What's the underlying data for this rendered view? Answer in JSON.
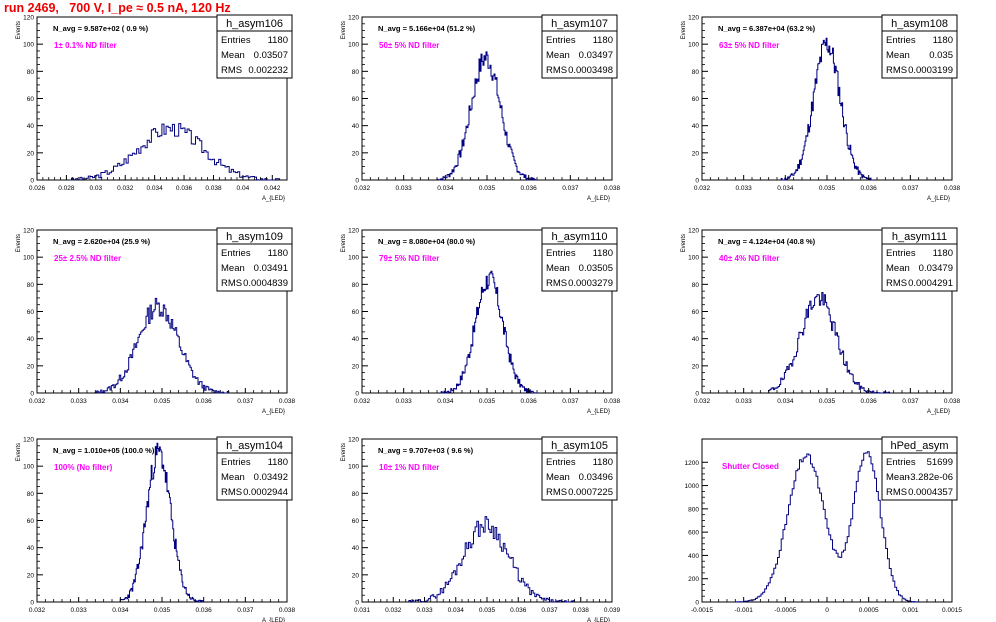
{
  "page": {
    "title": "run 2469,   700 V, I_pe ≈ 0.5 nA, 120 Hz",
    "colors": {
      "title": "#ee0000",
      "histogram": "#000080",
      "annotation": "#ff00ff",
      "axis": "#000000",
      "stats_box_bg": "#ffffff"
    }
  },
  "chart_data": [
    {
      "type": "histogram",
      "name": "h_asym106",
      "stats": {
        "entries": "1180",
        "mean": "0.03507",
        "rms": "0.002232"
      },
      "n_avg": "N_avg = 9.587e+02 ( 0.9 %)",
      "note": "1± 0.1% ND filter",
      "xlim": [
        0.026,
        0.043
      ],
      "xticks": [
        "0.026",
        "0.028",
        "0.03",
        "0.032",
        "0.034",
        "0.036",
        "0.038",
        "0.04",
        "0.042"
      ],
      "xtick_values": [
        0.026,
        0.028,
        0.03,
        0.032,
        0.034,
        0.036,
        0.038,
        0.04,
        0.042
      ],
      "ylim": [
        0,
        120
      ],
      "yticks": [
        "0",
        "20",
        "40",
        "60",
        "80",
        "100",
        "120"
      ],
      "ytick_values": [
        0,
        20,
        40,
        60,
        80,
        100,
        120
      ],
      "xlabel": "A_{LED}",
      "ylabel": "Events",
      "shape": {
        "kind": "gauss",
        "peak": 38,
        "mu": 0.0351,
        "sigma": 0.0022,
        "lo": 0.0282,
        "hi": 0.0425,
        "nbins": 100,
        "seed": 3
      }
    },
    {
      "type": "histogram",
      "name": "h_asym107",
      "stats": {
        "entries": "1180",
        "mean": "0.03497",
        "rms": "0.0003498"
      },
      "n_avg": "N_avg = 5.166e+04 (51.2 %)",
      "note": "50± 5% ND filter",
      "xlim": [
        0.032,
        0.038
      ],
      "xticks": [
        "0.032",
        "0.033",
        "0.034",
        "0.035",
        "0.036",
        "0.037",
        "0.038"
      ],
      "xtick_values": [
        0.032,
        0.033,
        0.034,
        0.035,
        0.036,
        0.037,
        0.038
      ],
      "ylim": [
        0,
        120
      ],
      "yticks": [
        "0",
        "20",
        "40",
        "60",
        "80",
        "100",
        "120"
      ],
      "ytick_values": [
        0,
        20,
        40,
        60,
        80,
        100,
        120
      ],
      "xlabel": "A_{LED}",
      "ylabel": "Events",
      "shape": {
        "kind": "gauss",
        "peak": 90,
        "mu": 0.03497,
        "sigma": 0.00035,
        "lo": 0.0338,
        "hi": 0.0362,
        "nbins": 100,
        "seed": 7
      }
    },
    {
      "type": "histogram",
      "name": "h_asym108",
      "stats": {
        "entries": "1180",
        "mean": "0.035",
        "rms": "0.0003199"
      },
      "n_avg": "N_avg = 6.387e+04 (63.2 %)",
      "note": "63± 5% ND filter",
      "xlim": [
        0.032,
        0.038
      ],
      "xticks": [
        "0.032",
        "0.033",
        "0.034",
        "0.035",
        "0.036",
        "0.037",
        "0.038"
      ],
      "xtick_values": [
        0.032,
        0.033,
        0.034,
        0.035,
        0.036,
        0.037,
        0.038
      ],
      "ylim": [
        0,
        120
      ],
      "yticks": [
        "0",
        "20",
        "40",
        "60",
        "80",
        "100",
        "120"
      ],
      "ytick_values": [
        0,
        20,
        40,
        60,
        80,
        100,
        120
      ],
      "xlabel": "A_{LED}",
      "ylabel": "Events",
      "shape": {
        "kind": "gauss",
        "peak": 100,
        "mu": 0.035,
        "sigma": 0.00032,
        "lo": 0.0339,
        "hi": 0.0361,
        "nbins": 100,
        "seed": 11
      }
    },
    {
      "type": "histogram",
      "name": "h_asym109",
      "stats": {
        "entries": "1180",
        "mean": "0.03491",
        "rms": "0.0004839"
      },
      "n_avg": "N_avg = 2.620e+04 (25.9 %)",
      "note": "25± 2.5% ND filter",
      "xlim": [
        0.032,
        0.038
      ],
      "xticks": [
        "0.032",
        "0.033",
        "0.034",
        "0.035",
        "0.036",
        "0.037",
        "0.038"
      ],
      "xtick_values": [
        0.032,
        0.033,
        0.034,
        0.035,
        0.036,
        0.037,
        0.038
      ],
      "ylim": [
        0,
        120
      ],
      "yticks": [
        "0",
        "20",
        "40",
        "60",
        "80",
        "100",
        "120"
      ],
      "ytick_values": [
        0,
        20,
        40,
        60,
        80,
        100,
        120
      ],
      "xlabel": "A_{LED}",
      "ylabel": "Events",
      "shape": {
        "kind": "gauss",
        "peak": 64,
        "mu": 0.03491,
        "sigma": 0.00048,
        "lo": 0.0334,
        "hi": 0.0366,
        "nbins": 100,
        "seed": 13
      }
    },
    {
      "type": "histogram",
      "name": "h_asym110",
      "stats": {
        "entries": "1180",
        "mean": "0.03505",
        "rms": "0.0003279"
      },
      "n_avg": "N_avg = 8.080e+04 (80.0 %)",
      "note": "79± 5% ND filter",
      "xlim": [
        0.032,
        0.038
      ],
      "xticks": [
        "0.032",
        "0.033",
        "0.034",
        "0.035",
        "0.036",
        "0.037",
        "0.038"
      ],
      "xtick_values": [
        0.032,
        0.033,
        0.034,
        0.035,
        0.036,
        0.037,
        0.038
      ],
      "ylim": [
        0,
        120
      ],
      "yticks": [
        "0",
        "20",
        "40",
        "60",
        "80",
        "100",
        "120"
      ],
      "ytick_values": [
        0,
        20,
        40,
        60,
        80,
        100,
        120
      ],
      "xlabel": "A_{LED}",
      "ylabel": "Events",
      "shape": {
        "kind": "gauss",
        "peak": 84,
        "mu": 0.03505,
        "sigma": 0.00033,
        "lo": 0.0339,
        "hi": 0.0362,
        "nbins": 100,
        "seed": 17
      }
    },
    {
      "type": "histogram",
      "name": "h_asym111",
      "stats": {
        "entries": "1180",
        "mean": "0.03479",
        "rms": "0.0004291"
      },
      "n_avg": "N_avg = 4.124e+04 (40.8 %)",
      "note": "40± 4% ND filter",
      "xlim": [
        0.032,
        0.038
      ],
      "xticks": [
        "0.032",
        "0.033",
        "0.034",
        "0.035",
        "0.036",
        "0.037",
        "0.038"
      ],
      "xtick_values": [
        0.032,
        0.033,
        0.034,
        0.035,
        0.036,
        0.037,
        0.038
      ],
      "ylim": [
        0,
        120
      ],
      "yticks": [
        "0",
        "20",
        "40",
        "60",
        "80",
        "100",
        "120"
      ],
      "ytick_values": [
        0,
        20,
        40,
        60,
        80,
        100,
        120
      ],
      "xlabel": "A_{LED}",
      "ylabel": "Events",
      "shape": {
        "kind": "gauss",
        "peak": 70,
        "mu": 0.03479,
        "sigma": 0.00043,
        "lo": 0.0336,
        "hi": 0.0365,
        "nbins": 100,
        "seed": 19
      }
    },
    {
      "type": "histogram",
      "name": "h_asym104",
      "stats": {
        "entries": "1180",
        "mean": "0.03492",
        "rms": "0.0002944"
      },
      "n_avg": "N_avg = 1.010e+05 (100.0 %)",
      "note": "100% (No filter)",
      "xlim": [
        0.032,
        0.038
      ],
      "xticks": [
        "0.032",
        "0.033",
        "0.034",
        "0.035",
        "0.036",
        "0.037",
        "0.038"
      ],
      "xtick_values": [
        0.032,
        0.033,
        0.034,
        0.035,
        0.036,
        0.037,
        0.038
      ],
      "ylim": [
        0,
        120
      ],
      "yticks": [
        "0",
        "20",
        "40",
        "60",
        "80",
        "100",
        "120"
      ],
      "ytick_values": [
        0,
        20,
        40,
        60,
        80,
        100,
        120
      ],
      "xlabel": "A_{LED}",
      "ylabel": "Events",
      "shape": {
        "kind": "gauss",
        "peak": 110,
        "mu": 0.03492,
        "sigma": 0.00029,
        "lo": 0.034,
        "hi": 0.036,
        "nbins": 100,
        "seed": 23
      }
    },
    {
      "type": "histogram",
      "name": "h_asym105",
      "stats": {
        "entries": "1180",
        "mean": "0.03496",
        "rms": "0.0007225"
      },
      "n_avg": "N_avg = 9.707e+03 ( 9.6 %)",
      "note": "10± 1% ND filter",
      "xlim": [
        0.031,
        0.039
      ],
      "xticks": [
        "0.031",
        "0.032",
        "0.033",
        "0.034",
        "0.035",
        "0.036",
        "0.037",
        "0.038",
        "0.039"
      ],
      "xtick_values": [
        0.031,
        0.032,
        0.033,
        0.034,
        0.035,
        0.036,
        0.037,
        0.038,
        0.039
      ],
      "ylim": [
        0,
        120
      ],
      "yticks": [
        "0",
        "20",
        "40",
        "60",
        "80",
        "100",
        "120"
      ],
      "ytick_values": [
        0,
        20,
        40,
        60,
        80,
        100,
        120
      ],
      "xlabel": "A_{LED}",
      "ylabel": "Events",
      "shape": {
        "kind": "gauss",
        "peak": 57,
        "mu": 0.03496,
        "sigma": 0.00072,
        "lo": 0.0325,
        "hi": 0.0378,
        "nbins": 100,
        "seed": 29
      }
    },
    {
      "type": "histogram",
      "name": "hPed_asym",
      "stats": {
        "entries": "51699",
        "mean": "-3.282e-06",
        "rms": "0.0004357"
      },
      "n_avg": "",
      "note": "Shutter Closed",
      "xlim": [
        -0.0015,
        0.0015
      ],
      "xticks": [
        "-0.0015",
        "-0.001",
        "-0.0005",
        "0",
        "0.0005",
        "0.001",
        "0.0015"
      ],
      "xtick_values": [
        -0.0015,
        -0.001,
        -0.0005,
        0,
        0.0005,
        0.001,
        0.0015
      ],
      "ylim": [
        0,
        1400
      ],
      "yticks": [
        "0",
        "200",
        "400",
        "600",
        "800",
        "1000",
        "1200"
      ],
      "ytick_values": [
        0,
        200,
        400,
        600,
        800,
        1000,
        1200
      ],
      "xlabel": "",
      "ylabel": "",
      "shape": {
        "kind": "double",
        "peak": 1320,
        "mu": -0.00025,
        "mu2": 0.00048,
        "sigma": 0.00022,
        "sigma2": 0.00016,
        "peak2": 1300,
        "lo": -0.0011,
        "hi": 0.0011,
        "nbins": 100,
        "seed": 31
      }
    }
  ]
}
